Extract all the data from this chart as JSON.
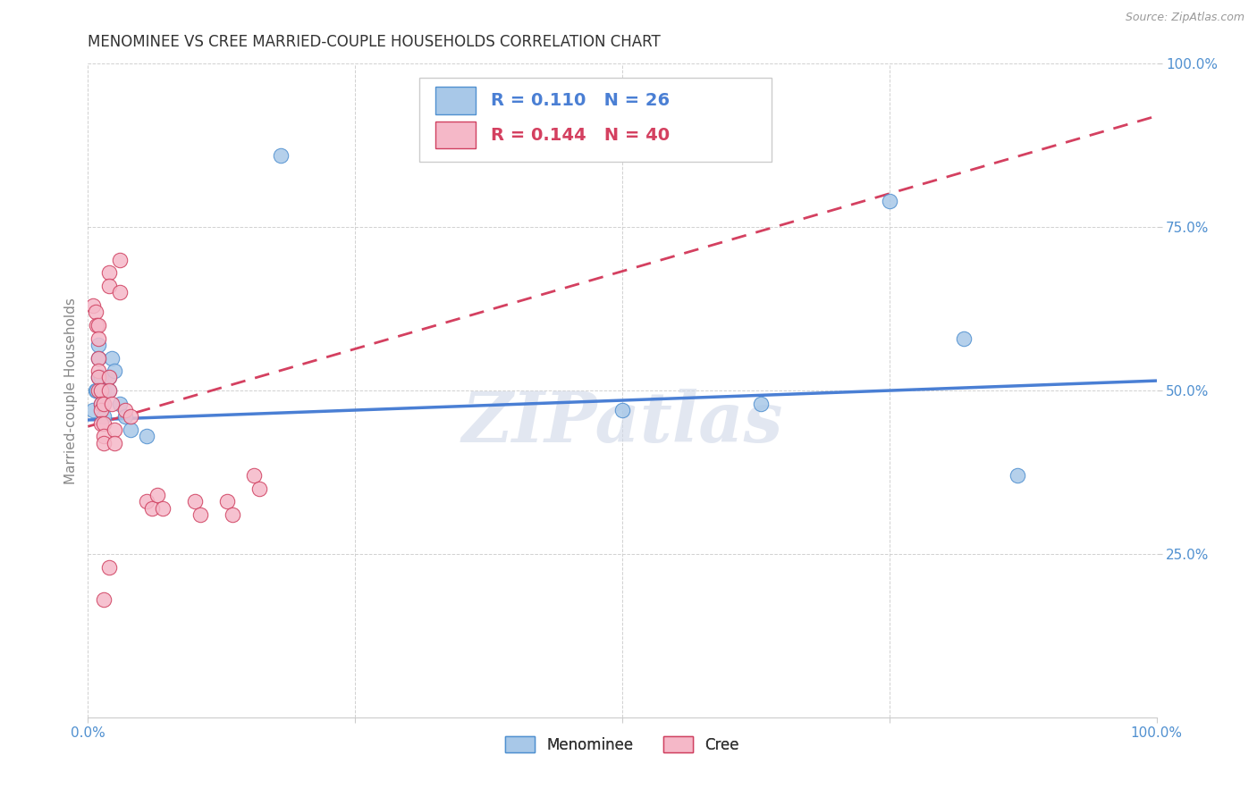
{
  "title": "MENOMINEE VS CREE MARRIED-COUPLE HOUSEHOLDS CORRELATION CHART",
  "source": "Source: ZipAtlas.com",
  "ylabel": "Married-couple Households",
  "watermark": "ZIPatlas",
  "legend_blue_R": "0.110",
  "legend_blue_N": "26",
  "legend_pink_R": "0.144",
  "legend_pink_N": "40",
  "blue_label": "Menominee",
  "pink_label": "Cree",
  "blue_color": "#a8c8e8",
  "pink_color": "#f5b8c8",
  "blue_edge_color": "#5090d0",
  "pink_edge_color": "#d04060",
  "blue_line_color": "#4a7fd4",
  "pink_line_color": "#d44060",
  "blue_scatter": [
    [
      0.005,
      0.47
    ],
    [
      0.007,
      0.5
    ],
    [
      0.008,
      0.5
    ],
    [
      0.01,
      0.52
    ],
    [
      0.01,
      0.55
    ],
    [
      0.01,
      0.57
    ],
    [
      0.012,
      0.48
    ],
    [
      0.012,
      0.5
    ],
    [
      0.012,
      0.52
    ],
    [
      0.015,
      0.5
    ],
    [
      0.015,
      0.48
    ],
    [
      0.015,
      0.46
    ],
    [
      0.02,
      0.52
    ],
    [
      0.02,
      0.5
    ],
    [
      0.022,
      0.55
    ],
    [
      0.025,
      0.53
    ],
    [
      0.03,
      0.48
    ],
    [
      0.035,
      0.46
    ],
    [
      0.04,
      0.44
    ],
    [
      0.055,
      0.43
    ],
    [
      0.18,
      0.86
    ],
    [
      0.5,
      0.47
    ],
    [
      0.63,
      0.48
    ],
    [
      0.75,
      0.79
    ],
    [
      0.82,
      0.58
    ],
    [
      0.87,
      0.37
    ]
  ],
  "pink_scatter": [
    [
      0.005,
      0.63
    ],
    [
      0.007,
      0.62
    ],
    [
      0.008,
      0.6
    ],
    [
      0.01,
      0.6
    ],
    [
      0.01,
      0.58
    ],
    [
      0.01,
      0.55
    ],
    [
      0.01,
      0.53
    ],
    [
      0.01,
      0.52
    ],
    [
      0.01,
      0.5
    ],
    [
      0.012,
      0.5
    ],
    [
      0.012,
      0.48
    ],
    [
      0.012,
      0.47
    ],
    [
      0.012,
      0.45
    ],
    [
      0.015,
      0.48
    ],
    [
      0.015,
      0.45
    ],
    [
      0.015,
      0.43
    ],
    [
      0.015,
      0.42
    ],
    [
      0.02,
      0.68
    ],
    [
      0.02,
      0.66
    ],
    [
      0.02,
      0.52
    ],
    [
      0.02,
      0.5
    ],
    [
      0.022,
      0.48
    ],
    [
      0.025,
      0.44
    ],
    [
      0.025,
      0.42
    ],
    [
      0.03,
      0.7
    ],
    [
      0.03,
      0.65
    ],
    [
      0.035,
      0.47
    ],
    [
      0.04,
      0.46
    ],
    [
      0.055,
      0.33
    ],
    [
      0.06,
      0.32
    ],
    [
      0.065,
      0.34
    ],
    [
      0.07,
      0.32
    ],
    [
      0.1,
      0.33
    ],
    [
      0.105,
      0.31
    ],
    [
      0.13,
      0.33
    ],
    [
      0.135,
      0.31
    ],
    [
      0.155,
      0.37
    ],
    [
      0.16,
      0.35
    ],
    [
      0.02,
      0.23
    ],
    [
      0.015,
      0.18
    ]
  ],
  "xlim": [
    0.0,
    1.0
  ],
  "ylim": [
    0.0,
    1.0
  ],
  "xticks": [
    0.0,
    0.25,
    0.5,
    0.75,
    1.0
  ],
  "xticklabels": [
    "0.0%",
    "",
    "",
    "",
    "100.0%"
  ],
  "ytick_positions": [
    0.25,
    0.5,
    0.75,
    1.0
  ],
  "ytick_labels": [
    "25.0%",
    "50.0%",
    "75.0%",
    "100.0%"
  ],
  "bg_color": "#ffffff",
  "grid_color": "#cccccc",
  "title_color": "#333333",
  "axis_label_color": "#888888",
  "tick_color": "#5090d0",
  "title_fontsize": 12,
  "label_fontsize": 11,
  "tick_fontsize": 11
}
